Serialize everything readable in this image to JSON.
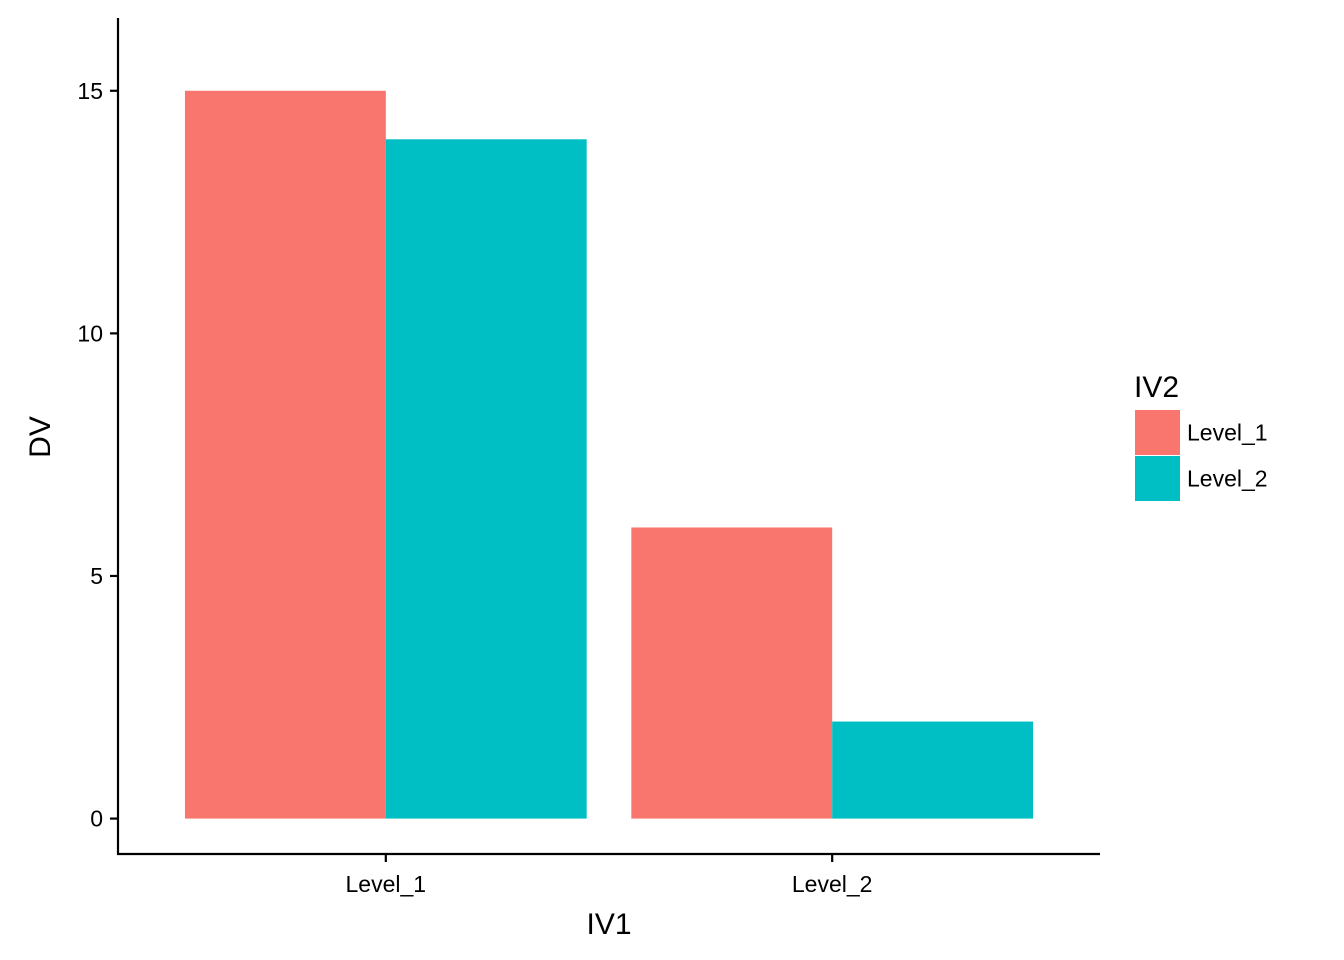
{
  "chart_data": {
    "type": "bar",
    "categories": [
      "Level_1",
      "Level_2"
    ],
    "series": [
      {
        "name": "Level_1",
        "values": [
          15,
          6
        ],
        "color": "#F8766D"
      },
      {
        "name": "Level_2",
        "values": [
          14,
          2
        ],
        "color": "#00BFC4"
      }
    ],
    "title": "",
    "xlabel": "IV1",
    "ylabel": "DV",
    "ylim": [
      -0.73,
      16.5
    ],
    "yticks": [
      0,
      5,
      10,
      15
    ],
    "grid": false,
    "legend": {
      "title": "IV2",
      "placement": "right"
    }
  }
}
